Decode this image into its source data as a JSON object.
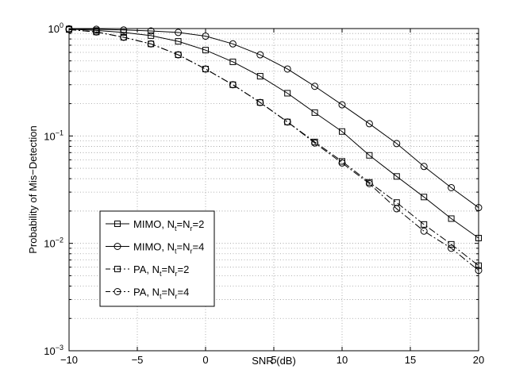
{
  "chart_data": {
    "type": "line",
    "title": "",
    "xlabel": "SNR (dB)",
    "ylabel": "Probability of Mis−Detection",
    "xlim": [
      -10,
      20
    ],
    "ylim": [
      0.001,
      1
    ],
    "yscale": "log",
    "grid": true,
    "x_ticks": [
      "−10",
      "−5",
      "0",
      "5",
      "10",
      "15",
      "20"
    ],
    "y_ticks": [
      {
        "base": "10",
        "exp": "0"
      },
      {
        "base": "10",
        "exp": "−1"
      },
      {
        "base": "10",
        "exp": "−2"
      },
      {
        "base": "10",
        "exp": "−3"
      }
    ],
    "legend_position": "lower-left",
    "x": [
      -10,
      -8,
      -6,
      -4,
      -2,
      0,
      2,
      4,
      6,
      8,
      10,
      12,
      14,
      16,
      18,
      20
    ],
    "series": [
      {
        "name": "MIMO, Nt=Nr=2",
        "legend_prefix": "MIMO, N",
        "marker": "square",
        "linestyle": "solid",
        "values": [
          0.99,
          0.96,
          0.92,
          0.86,
          0.76,
          0.63,
          0.49,
          0.36,
          0.25,
          0.165,
          0.11,
          0.066,
          0.042,
          0.027,
          0.017,
          0.0112
        ]
      },
      {
        "name": "MIMO, Nt=Nr=4",
        "legend_prefix": "MIMO, N",
        "marker": "circle",
        "linestyle": "solid",
        "values": [
          0.995,
          0.985,
          0.97,
          0.95,
          0.92,
          0.85,
          0.72,
          0.57,
          0.42,
          0.29,
          0.195,
          0.13,
          0.085,
          0.052,
          0.033,
          0.0215
        ]
      },
      {
        "name": "PA, Nt=Nr=2",
        "legend_prefix": "PA, N",
        "marker": "square",
        "linestyle": "dashdot",
        "values": [
          0.98,
          0.93,
          0.83,
          0.72,
          0.57,
          0.42,
          0.3,
          0.205,
          0.135,
          0.088,
          0.058,
          0.037,
          0.024,
          0.015,
          0.0098,
          0.0062
        ]
      },
      {
        "name": "PA, Nt=Nr=4",
        "legend_prefix": "PA, N",
        "marker": "circle",
        "linestyle": "dashdot",
        "values": [
          0.98,
          0.93,
          0.83,
          0.72,
          0.57,
          0.42,
          0.3,
          0.205,
          0.135,
          0.086,
          0.056,
          0.036,
          0.021,
          0.013,
          0.009,
          0.0056
        ]
      }
    ],
    "legend_entries": [
      {
        "prefix": "MIMO, N",
        "s1": "t",
        "eq1": "=N",
        "s2": "r",
        "eq2": "=2"
      },
      {
        "prefix": "MIMO, N",
        "s1": "t",
        "eq1": "=N",
        "s2": "r",
        "eq2": "=4"
      },
      {
        "prefix": "PA, N",
        "s1": "t",
        "eq1": "=N",
        "s2": "r",
        "eq2": "=2"
      },
      {
        "prefix": "PA, N",
        "s1": "t",
        "eq1": "=N",
        "s2": "r",
        "eq2": "=4"
      }
    ]
  }
}
